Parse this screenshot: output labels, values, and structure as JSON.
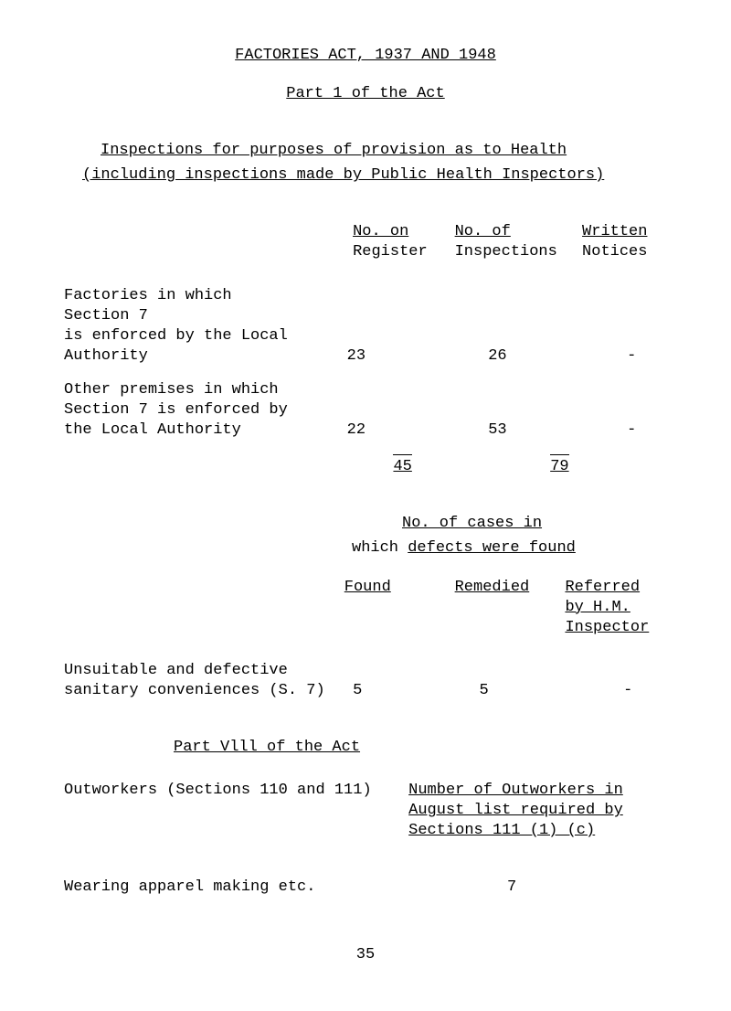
{
  "heading": {
    "title": "FACTORIES  ACT,  1937  AND  1948",
    "part1": "Part  1  of  the  Act",
    "inspections": "Inspections for purposes of provision as to Health",
    "including": "(including inspections made by Public Health Inspectors)"
  },
  "table1": {
    "headers": {
      "col1_line1": "No. on",
      "col1_line2": "Register",
      "col2_line1": "No. of",
      "col2_line2": "Inspections",
      "col3_line1": "Written",
      "col3_line2": "Notices"
    },
    "row1": {
      "label_line1": "Factories in which Section 7",
      "label_line2": "is enforced by the Local",
      "label_line3": "Authority",
      "col1": "23",
      "col2": "26",
      "col3": "-"
    },
    "row2": {
      "label_line1": "Other premises in which",
      "label_line2": "Section 7 is enforced by",
      "label_line3": "the Local Authority",
      "col1": "22",
      "col2": "53",
      "col3": "-"
    },
    "totals": {
      "col1": "45",
      "col2": "79"
    }
  },
  "cases": {
    "heading": "No. of cases in",
    "which": "which ",
    "defects": "defects were found"
  },
  "table2": {
    "headers": {
      "col1": "Found",
      "col2": "Remedied",
      "col3_line1": "Referred",
      "col3_line2": "by H.M.",
      "col3_line3": "Inspector"
    },
    "row1": {
      "label_line1": "Unsuitable and defective",
      "label_line2": "sanitary conveniences (S. 7)",
      "col1": "5",
      "col2": "5",
      "col3": "-"
    }
  },
  "part8": {
    "heading": "Part  Vlll  of  the  Act"
  },
  "outworkers": {
    "left": "Outworkers (Sections 110 and 111)",
    "right_line1": "Number of Outworkers in",
    "right_line2": "August list required by",
    "right_line3": "Sections 111 (1) (c)"
  },
  "wearing": {
    "label": "Wearing apparel making etc.",
    "value": "7"
  },
  "page_number": "35"
}
